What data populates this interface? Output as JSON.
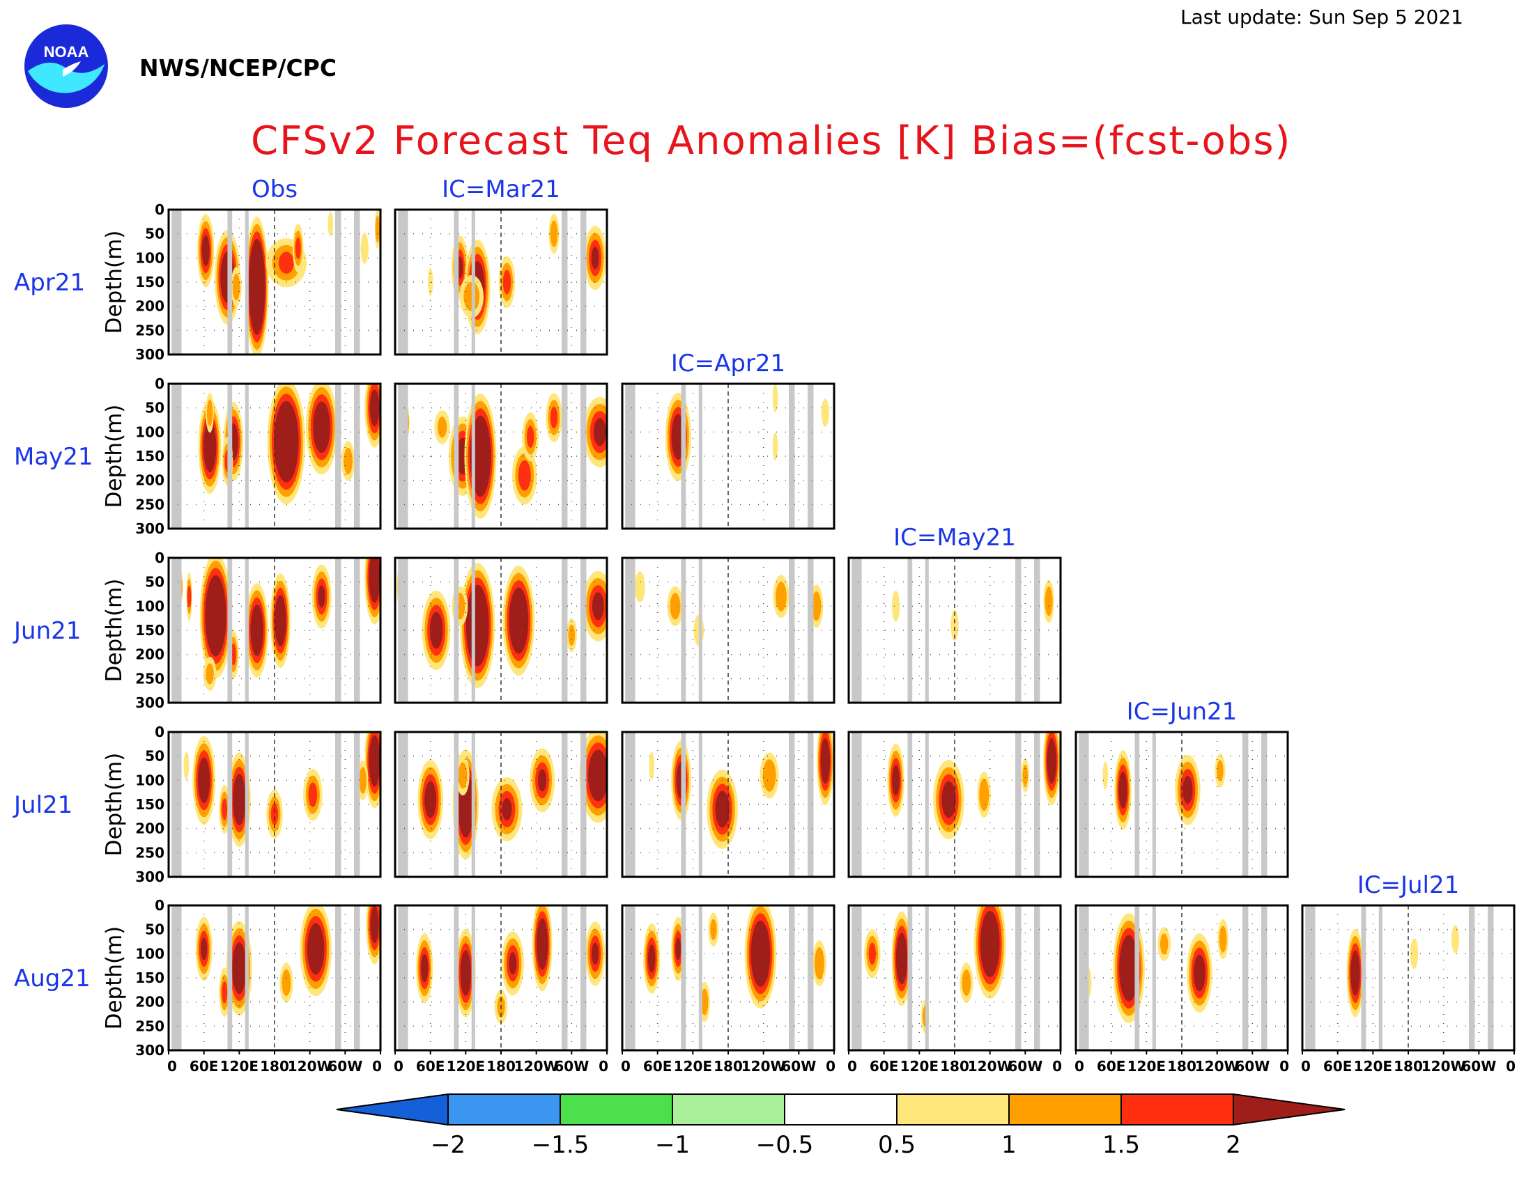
{
  "header": {
    "last_update": "Last update: Sun Sep  5 2021",
    "agency": "NWS/NCEP/CPC",
    "logo_text": "NOAA",
    "title": "CFSv2 Forecast Teq Anomalies [K] Bias=(fcst-obs)"
  },
  "colors": {
    "title": "#e8141c",
    "labels": "#1a35e8",
    "land_mask": "#c8c8c8"
  },
  "chart_data": {
    "type": "heatmap",
    "variable": "Teq Anomalies [K]",
    "ylabel": "Depth(m)",
    "y_ticks": [
      0,
      50,
      100,
      150,
      200,
      250,
      300
    ],
    "ylim": [
      300,
      0
    ],
    "x_ticks": [
      "0",
      "60E",
      "120E",
      "180",
      "120W",
      "60W",
      "0"
    ],
    "xlim": [
      0,
      360
    ],
    "rows": [
      "Apr21",
      "May21",
      "Jun21",
      "Jul21",
      "Aug21"
    ],
    "columns": [
      "Obs",
      "IC=Mar21",
      "IC=Apr21",
      "IC=May21",
      "IC=Jun21",
      "IC=Jul21"
    ],
    "land_mask_lon": [
      [
        5,
        22
      ],
      [
        100,
        108
      ],
      [
        130,
        136
      ],
      [
        283,
        293
      ],
      [
        315,
        325
      ]
    ],
    "colorbar": {
      "ticks": [
        "-2",
        "-1.5",
        "-1",
        "-0.5",
        "0.5",
        "1",
        "1.5",
        "2"
      ],
      "colors": [
        "#1560d8",
        "#3a96f0",
        "#4ce04c",
        "#aaf09a",
        "#ffffff",
        "#ffe67a",
        "#ffa000",
        "#ff3010",
        "#a01e1a"
      ]
    },
    "anomaly_blobs": {
      "Apr21|Obs": [
        [
          63,
          85,
          5,
          2.3
        ],
        [
          100,
          140,
          8,
          3
        ],
        [
          150,
          130,
          6,
          3
        ],
        [
          150,
          160,
          7,
          4.5
        ],
        [
          200,
          110,
          14,
          1.5
        ],
        [
          220,
          80,
          3,
          1.5
        ],
        [
          115,
          160,
          3,
          1.2
        ],
        [
          275,
          30,
          1,
          0.7
        ],
        [
          355,
          40,
          1,
          1.2
        ],
        [
          333,
          80,
          2,
          0.9
        ]
      ],
      "Apr21|IC=Mar21": [
        [
          110,
          120,
          5,
          2
        ],
        [
          140,
          160,
          8,
          3
        ],
        [
          130,
          180,
          8,
          1.3
        ],
        [
          190,
          150,
          5,
          1.6
        ],
        [
          60,
          150,
          1,
          0.8
        ],
        [
          340,
          100,
          7,
          2
        ],
        [
          270,
          50,
          3,
          1.2
        ],
        [
          15,
          50,
          1,
          0.8
        ]
      ],
      "May21|Obs": [
        [
          70,
          130,
          7,
          3
        ],
        [
          110,
          120,
          6,
          2.5
        ],
        [
          200,
          120,
          12,
          4
        ],
        [
          260,
          90,
          10,
          3
        ],
        [
          350,
          50,
          6,
          2.5
        ],
        [
          100,
          160,
          3,
          1.5
        ],
        [
          10,
          60,
          1,
          0.8
        ],
        [
          70,
          60,
          2,
          1.2
        ],
        [
          305,
          160,
          4,
          1.2
        ]
      ],
      "May21|IC=Mar21": [
        [
          115,
          150,
          9,
          2.5
        ],
        [
          145,
          150,
          10,
          4
        ],
        [
          220,
          190,
          8,
          1.8
        ],
        [
          230,
          110,
          5,
          1.5
        ],
        [
          270,
          70,
          5,
          1.5
        ],
        [
          348,
          100,
          11,
          2.2
        ],
        [
          80,
          90,
          5,
          1
        ],
        [
          20,
          80,
          1,
          1
        ]
      ],
      "May21|IC=Apr21": [
        [
          95,
          110,
          8,
          2.8
        ],
        [
          345,
          60,
          2,
          0.8
        ],
        [
          260,
          130,
          1,
          0.8
        ],
        [
          260,
          30,
          1,
          0.8
        ]
      ],
      "Jun21|Obs": [
        [
          80,
          120,
          10,
          4
        ],
        [
          150,
          150,
          7,
          3
        ],
        [
          190,
          130,
          6,
          3
        ],
        [
          260,
          80,
          6,
          2
        ],
        [
          350,
          40,
          6,
          3
        ],
        [
          20,
          60,
          1,
          1
        ],
        [
          35,
          80,
          1,
          1.5
        ],
        [
          70,
          240,
          4,
          1
        ],
        [
          110,
          200,
          3,
          1.5
        ]
      ],
      "Jun21|IC=Mar21": [
        [
          70,
          150,
          9,
          2.5
        ],
        [
          140,
          140,
          11,
          4
        ],
        [
          210,
          130,
          10,
          3.5
        ],
        [
          345,
          100,
          10,
          2.2
        ],
        [
          10,
          60,
          2,
          1.5
        ],
        [
          110,
          100,
          5,
          1.2
        ],
        [
          300,
          160,
          3,
          1
        ]
      ],
      "Jun21|IC=Apr21": [
        [
          90,
          100,
          5,
          1.2
        ],
        [
          130,
          150,
          3,
          0.9
        ],
        [
          270,
          80,
          5,
          1.3
        ],
        [
          330,
          100,
          4,
          1.3
        ],
        [
          30,
          60,
          3,
          0.9
        ]
      ],
      "Jun21|IC=May21": [
        [
          340,
          90,
          3,
          1.3
        ],
        [
          180,
          140,
          2,
          0.9
        ],
        [
          80,
          100,
          2,
          0.9
        ]
      ],
      "Jul21|Obs": [
        [
          60,
          100,
          7,
          2.8
        ],
        [
          120,
          140,
          7,
          3
        ],
        [
          180,
          170,
          5,
          1.5
        ],
        [
          245,
          130,
          6,
          1.6
        ],
        [
          350,
          60,
          6,
          3
        ],
        [
          95,
          160,
          3,
          1.5
        ],
        [
          330,
          100,
          3,
          1.2
        ],
        [
          30,
          70,
          1,
          0.8
        ]
      ],
      "Jul21|IC=Mar21": [
        [
          60,
          140,
          8,
          2.5
        ],
        [
          120,
          150,
          8,
          3.5
        ],
        [
          190,
          160,
          10,
          2
        ],
        [
          250,
          100,
          8,
          2
        ],
        [
          345,
          90,
          12,
          3
        ],
        [
          15,
          50,
          2,
          1.5
        ],
        [
          115,
          90,
          4,
          1.2
        ]
      ],
      "Jul21|IC=Apr21": [
        [
          100,
          100,
          6,
          2.5
        ],
        [
          170,
          160,
          10,
          2.5
        ],
        [
          250,
          90,
          6,
          1.4
        ],
        [
          345,
          60,
          5,
          2.8
        ],
        [
          50,
          70,
          1,
          0.8
        ]
      ],
      "Jul21|IC=May21": [
        [
          80,
          100,
          5,
          2.3
        ],
        [
          170,
          140,
          10,
          2.5
        ],
        [
          230,
          130,
          4,
          1.4
        ],
        [
          345,
          60,
          5,
          2.8
        ],
        [
          300,
          90,
          2,
          1
        ]
      ],
      "Jul21|IC=Jun21": [
        [
          80,
          120,
          5,
          2.5
        ],
        [
          190,
          120,
          8,
          2.2
        ],
        [
          245,
          80,
          3,
          1
        ],
        [
          50,
          90,
          1,
          0.8
        ]
      ],
      "Aug21|Obs": [
        [
          60,
          90,
          5,
          2
        ],
        [
          120,
          130,
          8,
          3
        ],
        [
          250,
          90,
          10,
          3
        ],
        [
          350,
          40,
          5,
          2.5
        ],
        [
          95,
          180,
          3,
          1.5
        ],
        [
          200,
          160,
          4,
          1.2
        ]
      ],
      "Aug21|IC=Mar21": [
        [
          50,
          130,
          5,
          2.2
        ],
        [
          120,
          140,
          6,
          2.8
        ],
        [
          200,
          120,
          7,
          2
        ],
        [
          250,
          80,
          6,
          3
        ],
        [
          340,
          100,
          6,
          2
        ],
        [
          15,
          70,
          2,
          1.5
        ],
        [
          180,
          210,
          4,
          1
        ]
      ],
      "Aug21|IC=Apr21": [
        [
          50,
          110,
          5,
          2.2
        ],
        [
          95,
          90,
          4,
          2
        ],
        [
          235,
          100,
          10,
          3.5
        ],
        [
          335,
          120,
          4,
          1.4
        ],
        [
          140,
          200,
          3,
          1.2
        ],
        [
          155,
          50,
          3,
          1
        ]
      ],
      "Aug21|IC=May21": [
        [
          90,
          110,
          6,
          3
        ],
        [
          240,
          80,
          10,
          3.5
        ],
        [
          40,
          100,
          5,
          1.5
        ],
        [
          200,
          160,
          4,
          1.2
        ],
        [
          130,
          230,
          2,
          1
        ]
      ],
      "Aug21|IC=Jun21": [
        [
          90,
          130,
          10,
          3.5
        ],
        [
          210,
          140,
          8,
          2.5
        ],
        [
          150,
          80,
          4,
          1
        ],
        [
          250,
          70,
          3,
          1.2
        ],
        [
          20,
          160,
          2,
          0.9
        ]
      ],
      "Aug21|IC=Jul21": [
        [
          90,
          140,
          5,
          2.8
        ],
        [
          190,
          100,
          2,
          0.9
        ],
        [
          260,
          70,
          2,
          0.8
        ]
      ]
    }
  }
}
